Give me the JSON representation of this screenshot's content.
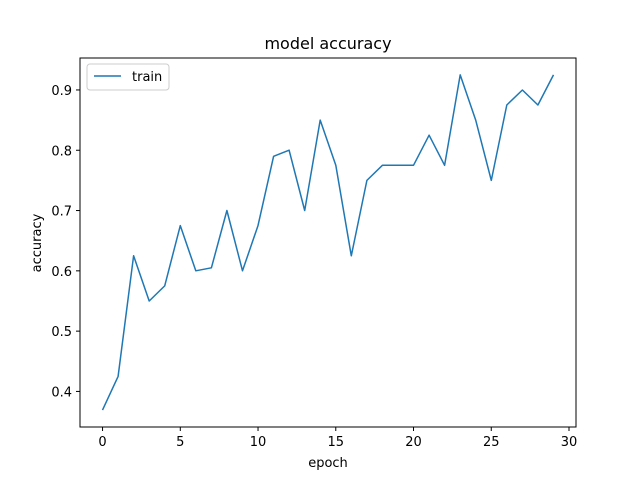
{
  "chart_data": {
    "type": "line",
    "title": "model accuracy",
    "xlabel": "epoch",
    "ylabel": "accuracy",
    "xlim": [
      -1.45,
      30.45
    ],
    "ylim": [
      0.341,
      0.953
    ],
    "xticks": [
      0,
      5,
      10,
      15,
      20,
      25,
      30
    ],
    "yticks": [
      0.4,
      0.5,
      0.6,
      0.7,
      0.8,
      0.9
    ],
    "xtick_labels": [
      "0",
      "5",
      "10",
      "15",
      "20",
      "25",
      "30"
    ],
    "ytick_labels": [
      "0.4",
      "0.5",
      "0.6",
      "0.7",
      "0.8",
      "0.9"
    ],
    "grid": false,
    "legend_position": "top-left",
    "x": [
      0,
      1,
      2,
      3,
      4,
      5,
      6,
      7,
      8,
      9,
      10,
      11,
      12,
      13,
      14,
      15,
      16,
      17,
      18,
      19,
      20,
      21,
      22,
      23,
      24,
      25,
      26,
      27,
      28,
      29
    ],
    "series": [
      {
        "name": "train",
        "color": "#1f77b4",
        "values": [
          0.369,
          0.425,
          0.625,
          0.55,
          0.575,
          0.675,
          0.6,
          0.605,
          0.7,
          0.6,
          0.675,
          0.79,
          0.8,
          0.7,
          0.85,
          0.775,
          0.625,
          0.75,
          0.775,
          0.775,
          0.775,
          0.825,
          0.775,
          0.925,
          0.85,
          0.75,
          0.875,
          0.9,
          0.875,
          0.925
        ]
      }
    ]
  }
}
